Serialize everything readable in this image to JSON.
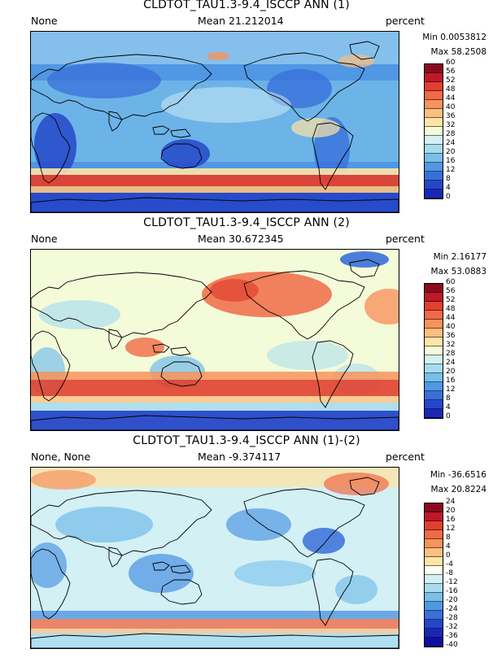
{
  "panels": [
    {
      "title": "CLDTOT_TAU1.3-9.4_ISCCP ANN (1)",
      "left_label": "None",
      "mean_label": "Mean 21.212014",
      "units_label": "percent",
      "min_label": "Min 0.0053812",
      "max_label": "Max 58.2508",
      "field_style": "low",
      "colorbar_ticks": [
        "60",
        "56",
        "52",
        "48",
        "44",
        "40",
        "36",
        "32",
        "28",
        "24",
        "20",
        "16",
        "12",
        "8",
        "4",
        "0"
      ],
      "colorbar_colors": [
        "#8b0a1e",
        "#c0172b",
        "#e0402f",
        "#f06a45",
        "#f7935c",
        "#fbbf80",
        "#fde4a7",
        "#f4fbd9",
        "#d3f0f5",
        "#a7dcf0",
        "#78bfe9",
        "#5097e4",
        "#3870d9",
        "#2447c9",
        "#1b26b7"
      ]
    },
    {
      "title": "CLDTOT_TAU1.3-9.4_ISCCP ANN (2)",
      "left_label": "None",
      "mean_label": "Mean 30.672345",
      "units_label": "percent",
      "min_label": "Min 2.16177",
      "max_label": "Max 53.0883",
      "field_style": "high",
      "colorbar_ticks": [
        "60",
        "56",
        "52",
        "48",
        "44",
        "40",
        "36",
        "32",
        "28",
        "24",
        "20",
        "16",
        "12",
        "8",
        "4",
        "0"
      ],
      "colorbar_colors": [
        "#8b0a1e",
        "#c0172b",
        "#e0402f",
        "#f06a45",
        "#f7935c",
        "#fbbf80",
        "#fde4a7",
        "#f4fbd9",
        "#d3f0f5",
        "#a7dcf0",
        "#78bfe9",
        "#5097e4",
        "#3870d9",
        "#2447c9",
        "#1b26b7"
      ]
    },
    {
      "title": "CLDTOT_TAU1.3-9.4_ISCCP ANN (1)-(2)",
      "left_label": "None, None",
      "mean_label": "Mean -9.374117",
      "units_label": "percent",
      "min_label": "Min -36.6516",
      "max_label": "Max 20.8224",
      "field_style": "diff",
      "colorbar_ticks": [
        "24",
        "20",
        "16",
        "12",
        "8",
        "4",
        "0",
        "-4",
        "-8",
        "-12",
        "-16",
        "-20",
        "-24",
        "-28",
        "-32",
        "-36",
        "-40"
      ],
      "colorbar_colors": [
        "#8b0a1e",
        "#c0172b",
        "#e0402f",
        "#f06a45",
        "#f7935c",
        "#fbbf80",
        "#fde4a7",
        "#fdfdf3",
        "#d3f0f5",
        "#a7dcf0",
        "#78bfe9",
        "#5097e4",
        "#3870d9",
        "#2447c9",
        "#1b26b7",
        "#0d0fa0"
      ]
    }
  ]
}
